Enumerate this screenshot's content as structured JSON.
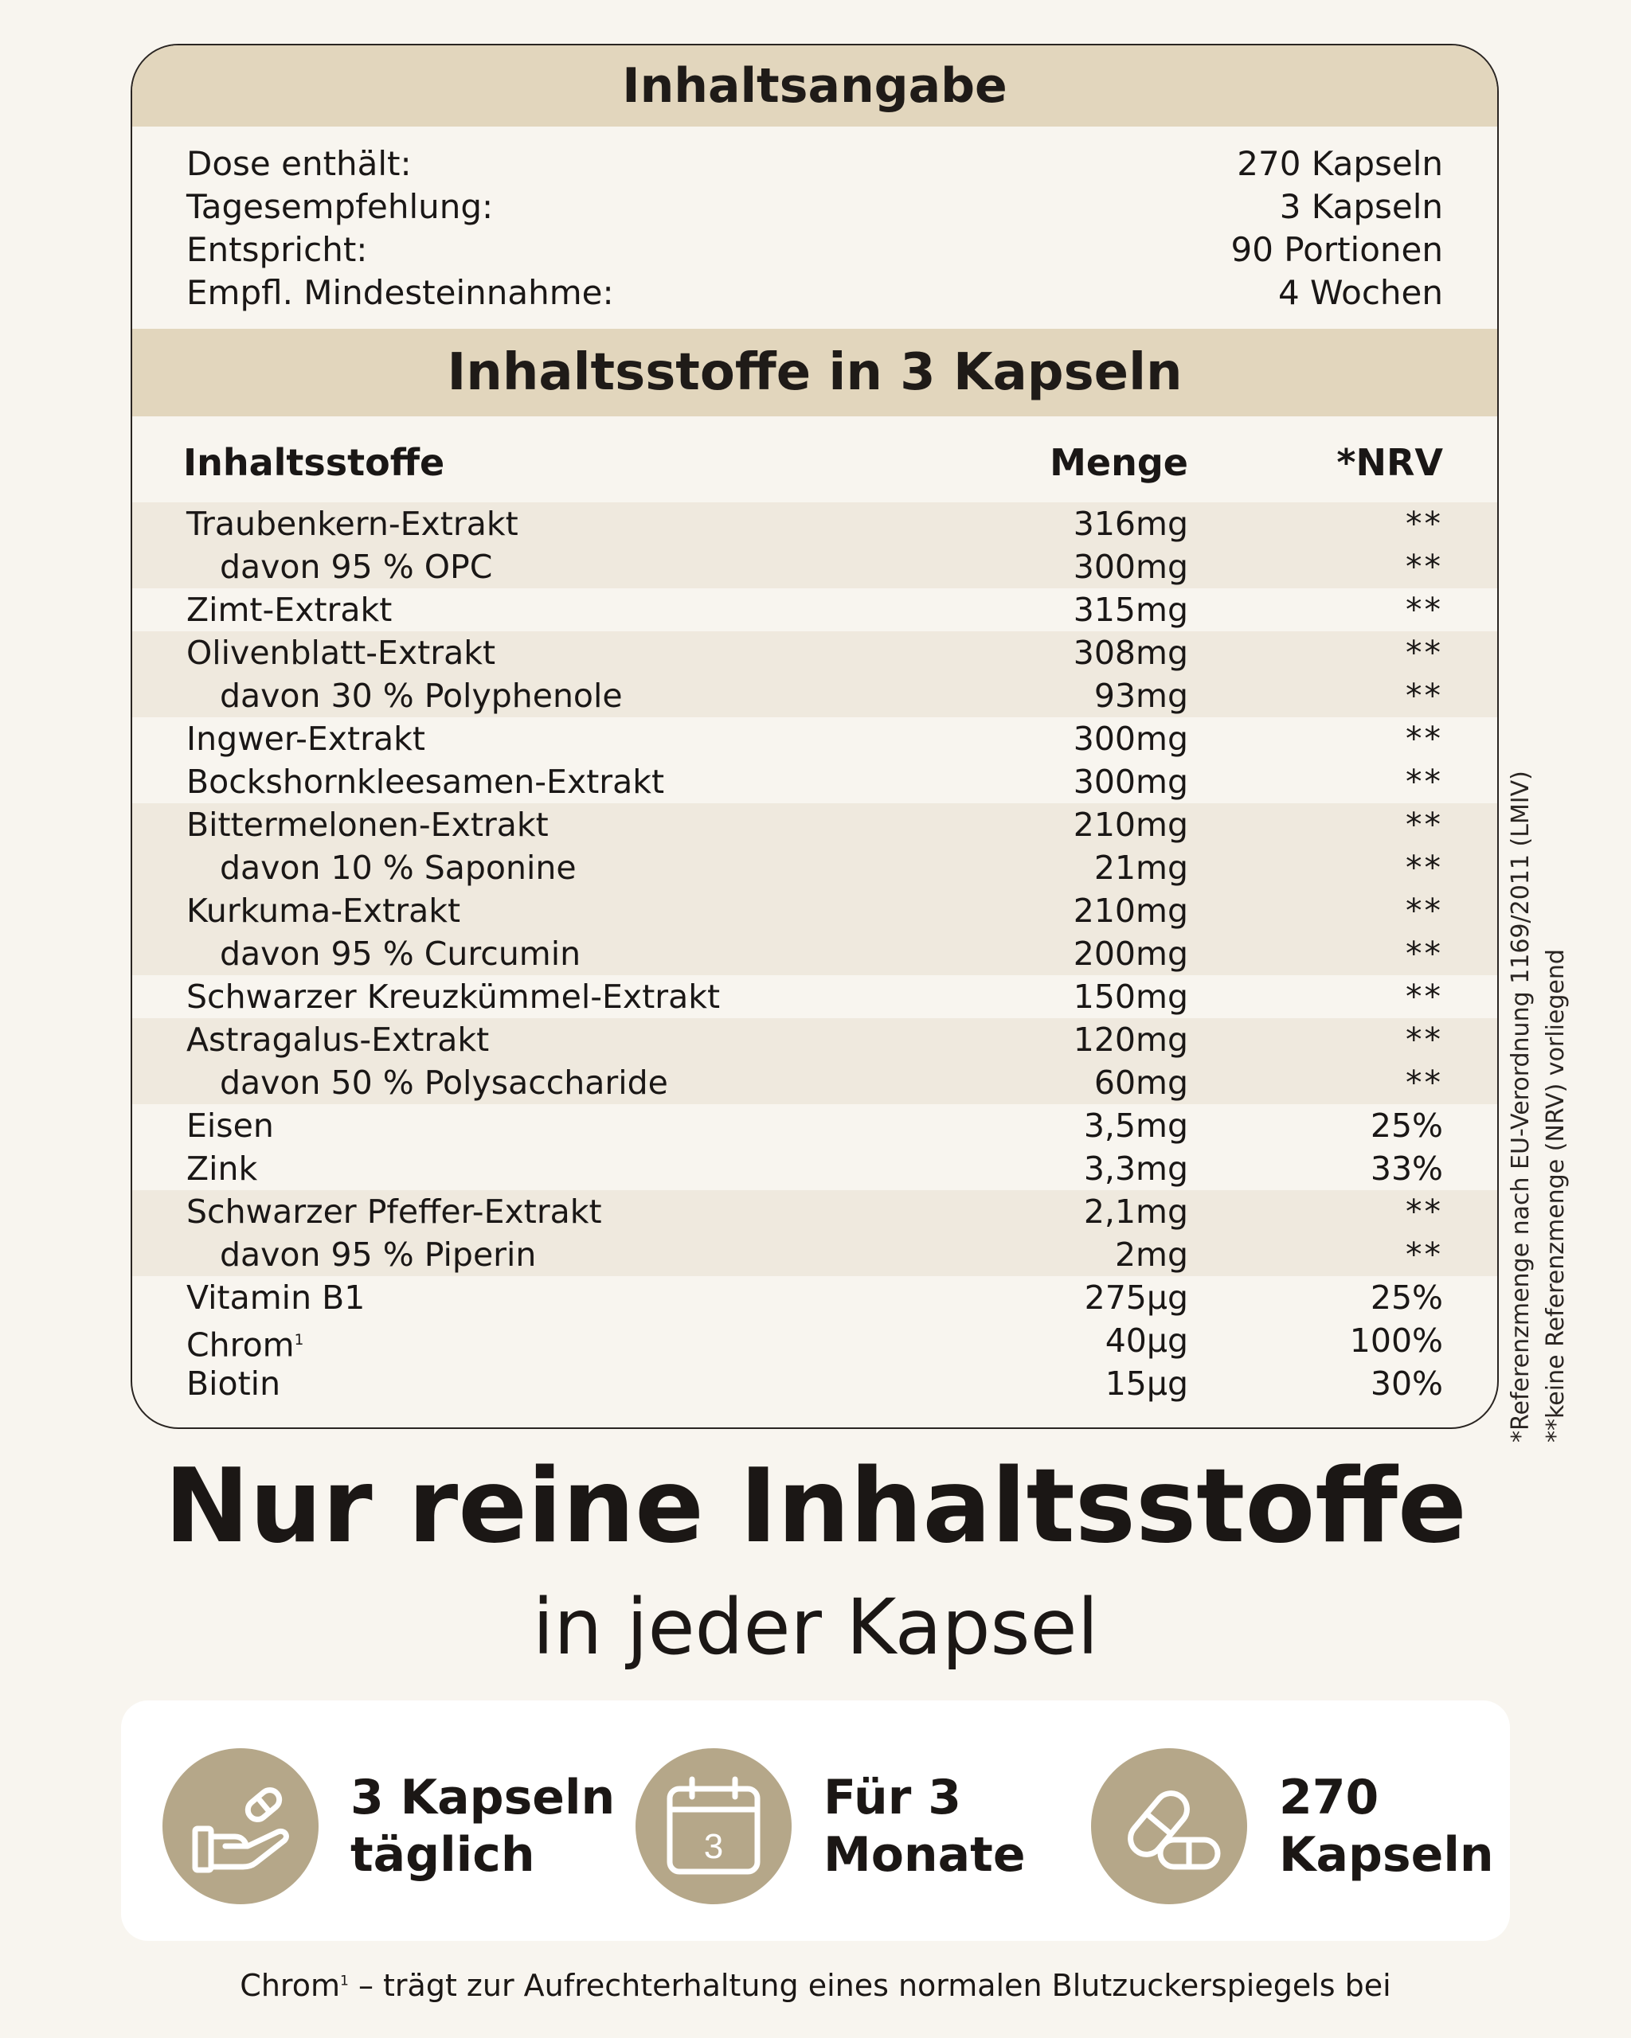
{
  "box": {
    "title": "Inhaltsangabe",
    "summary": [
      {
        "label": "Dose enthält:",
        "value": "270 Kapseln"
      },
      {
        "label": "Tagesempfehlung:",
        "value": "3 Kapseln"
      },
      {
        "label": "Entspricht:",
        "value": "90 Portionen"
      },
      {
        "label": "Empfl. Mindesteinnahme:",
        "value": "4 Wochen"
      }
    ],
    "ingredients_title": "Inhaltsstoffe in 3 Kapseln",
    "columns": [
      "Inhaltsstoffe",
      "Menge",
      "*NRV"
    ],
    "rows": [
      {
        "name": "Traubenkern-Extrakt",
        "amount": "316mg",
        "nrv": "**"
      },
      {
        "name": "davon 95 % OPC",
        "amount": "300mg",
        "nrv": "**"
      },
      {
        "name": "Zimt-Extrakt",
        "amount": "315mg",
        "nrv": "**"
      },
      {
        "name": "Olivenblatt-Extrakt",
        "amount": "308mg",
        "nrv": "**"
      },
      {
        "name": "davon 30 % Polyphenole",
        "amount": "93mg",
        "nrv": "**"
      },
      {
        "name": "Ingwer-Extrakt",
        "amount": "300mg",
        "nrv": "**"
      },
      {
        "name": "Bockshornkleesamen-Extrakt",
        "amount": "300mg",
        "nrv": "**"
      },
      {
        "name": "Bittermelonen-Extrakt",
        "amount": "210mg",
        "nrv": "**"
      },
      {
        "name": "davon 10 % Saponine",
        "amount": "21mg",
        "nrv": "**"
      },
      {
        "name": "Kurkuma-Extrakt",
        "amount": "210mg",
        "nrv": "**"
      },
      {
        "name": "davon 95 % Curcumin",
        "amount": "200mg",
        "nrv": "**"
      },
      {
        "name": "Schwarzer Kreuzkümmel-Extrakt",
        "amount": "150mg",
        "nrv": "**"
      },
      {
        "name": "Astragalus-Extrakt",
        "amount": "120mg",
        "nrv": "**"
      },
      {
        "name": "davon 50 % Polysaccharide",
        "amount": "60mg",
        "nrv": "**"
      },
      {
        "name": "Eisen",
        "amount": "3,5mg",
        "nrv": "25%"
      },
      {
        "name": "Zink",
        "amount": "3,3mg",
        "nrv": "33%"
      },
      {
        "name": "Schwarzer Pfeffer-Extrakt",
        "amount": "2,1mg",
        "nrv": "**"
      },
      {
        "name": "davon 95 % Piperin",
        "amount": "2mg",
        "nrv": "**"
      },
      {
        "name": "Vitamin B1",
        "amount": "275µg",
        "nrv": "25%"
      },
      {
        "name": "Chrom",
        "sup": "1",
        "amount": "40µg",
        "nrv": "100%"
      },
      {
        "name": "Biotin",
        "amount": "15µg",
        "nrv": "30%"
      }
    ]
  },
  "side_note": {
    "line1": "*Referenzmenge nach EU-Verordnung 1169/2011 (LMIV)",
    "line2": "**keine Referenzmenge (NRV) vorliegend"
  },
  "headline": "Nur reine Inhaltsstoffe",
  "subheadline": "in jeder Kapsel",
  "features": [
    {
      "icon": "hand-capsule-icon",
      "line1": "3 Kapseln",
      "line2": "täglich"
    },
    {
      "icon": "calendar-icon",
      "calendar_number": "3",
      "line1": "Für 3",
      "line2": "Monate"
    },
    {
      "icon": "capsules-icon",
      "line1": "270",
      "line2": "Kapseln"
    }
  ],
  "footer": {
    "prefix": "Chrom",
    "sup": "1",
    "text": " – trägt zur Aufrechterhaltung eines normalen Blutzuckerspiegels bei"
  },
  "colors": {
    "background": "#f8f5ef",
    "band": "#e2d6bd",
    "row_shade": "#efe9de",
    "icon_circle": "#b5a789"
  }
}
